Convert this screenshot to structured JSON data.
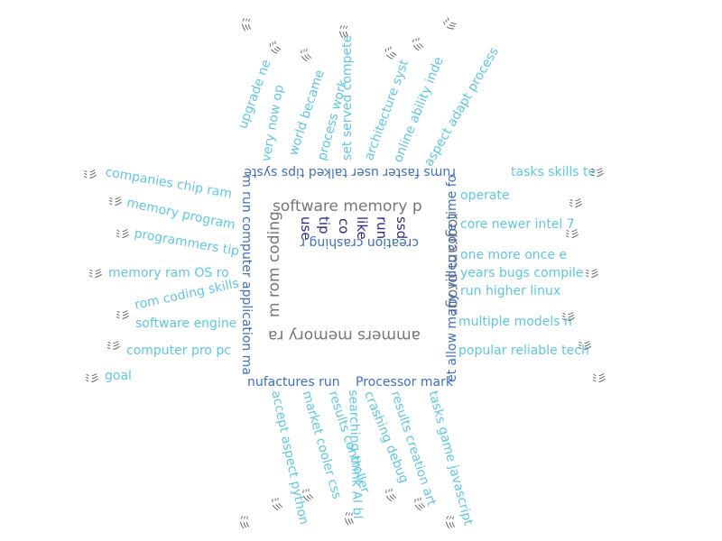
{
  "colors": {
    "light_blue": "#5fc6e3",
    "mid_blue": "#3f6fc0",
    "navy": "#2a2a8c",
    "gray": "#777777"
  },
  "core": {
    "top": "software memory p",
    "right": "rogram progr",
    "bottom": "ammers memory ra",
    "left": "m rom coding",
    "inner": [
      "use",
      "tip",
      "co",
      "like",
      "run",
      "ssd",
      "creation crashing r"
    ]
  },
  "edges": {
    "top": "rums faster user talked tips syste",
    "right": "et allow many video core time fo",
    "bottom_left": "nufactures run",
    "bottom_right": "Processor mark",
    "left": "m run computer application ma"
  },
  "top_words": [
    "upgrade ne",
    "very now op",
    "world became",
    "process work",
    "set served compete",
    "architecture syst",
    "online ability inde",
    "aspect adapt process"
  ],
  "bottom_words": [
    "accept aspect python",
    "market cooler css",
    "results controller",
    "searching think AI bl",
    "crashing debug",
    "results creation art",
    "tasks game javascript"
  ],
  "left_words": [
    "companies chip ram",
    "memory program",
    "programmers tip",
    "memory ram OS ro",
    "rom coding skills",
    "software engine",
    "computer pro pc",
    "goal"
  ],
  "right_words": [
    "tasks skills te",
    "operate",
    "core newer intel 7",
    "one more once e",
    "years bugs compile",
    "run higher linux",
    "multiple models n",
    "popular reliable tech"
  ],
  "icons": {
    "name": "word-cluster-icon",
    "glyph": "ﾐ彡",
    "count": 32
  }
}
